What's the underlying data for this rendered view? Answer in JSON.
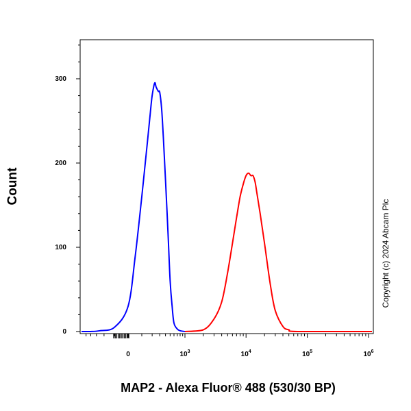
{
  "chart_data": {
    "type": "line",
    "xlabel": "MAP2 - Alexa Fluor® 488 (530/30 BP)",
    "ylabel": "Count",
    "x_scale": "biexponential",
    "x_ticks": [
      {
        "value": 0,
        "base": "0",
        "exp": ""
      },
      {
        "value": 1000,
        "base": "10",
        "exp": "3"
      },
      {
        "value": 10000,
        "base": "10",
        "exp": "4"
      },
      {
        "value": 100000,
        "base": "10",
        "exp": "5"
      },
      {
        "value": 1000000,
        "base": "10",
        "exp": "6"
      }
    ],
    "y_ticks": [
      0,
      100,
      200,
      300
    ],
    "ylim": [
      0,
      350
    ],
    "grid": false,
    "series": [
      {
        "color": "#0000ff",
        "x": [
          -400,
          -250,
          -100,
          0,
          50,
          100,
          150,
          180,
          200,
          230,
          250,
          280,
          300,
          330,
          360,
          400,
          450,
          500,
          550,
          600,
          700,
          800,
          1000
        ],
        "y": [
          0,
          1,
          5,
          30,
          90,
          160,
          225,
          260,
          280,
          295,
          290,
          285,
          284,
          265,
          230,
          180,
          120,
          60,
          30,
          10,
          3,
          1,
          0
        ]
      },
      {
        "color": "#ff0000",
        "x": [
          1000,
          2000,
          3000,
          4000,
          5000,
          6000,
          7000,
          8000,
          9000,
          10000,
          11000,
          12000,
          13000,
          14000,
          15000,
          17000,
          20000,
          25000,
          30000,
          40000,
          50000,
          70000
        ],
        "y": [
          0,
          2,
          15,
          35,
          70,
          105,
          135,
          160,
          175,
          185,
          188,
          185,
          185,
          178,
          165,
          140,
          105,
          55,
          25,
          6,
          2,
          0
        ]
      }
    ],
    "annotations": [
      "Copyright (c) 2024 Abcam Plc"
    ]
  }
}
